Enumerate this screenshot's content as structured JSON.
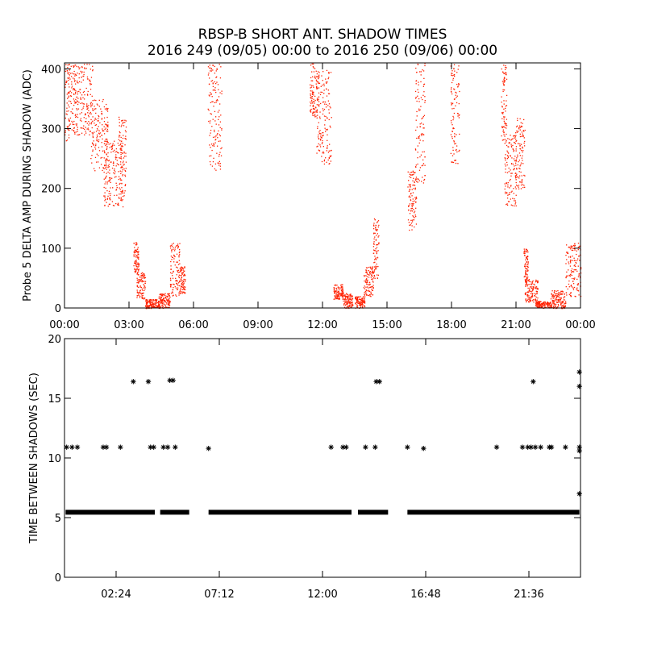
{
  "title_line1": "RBSP-B SHORT ANT. SHADOW TIMES",
  "title_line2": "2016 249 (09/05) 00:00 to 2016 250 (09/06) 00:00",
  "point_color": "#ff2000",
  "marker_color": "#000000",
  "chart_data": [
    {
      "type": "scatter",
      "ylabel": "Probe 5 DELTA AMP DURING SHADOW (ADC)",
      "xlabel": "",
      "x_unit": "hours",
      "xlim": [
        0,
        24
      ],
      "ylim": [
        0,
        410
      ],
      "x_ticks": [
        0,
        3,
        6,
        9,
        12,
        15,
        18,
        21,
        24
      ],
      "x_tick_labels": [
        "00:00",
        "03:00",
        "06:00",
        "09:00",
        "12:00",
        "15:00",
        "18:00",
        "21:00",
        "00:00"
      ],
      "y_ticks": [
        0,
        100,
        200,
        300,
        400
      ],
      "y_tick_labels": [
        "0",
        "100",
        "200",
        "300",
        "400"
      ],
      "series": [
        {
          "bands": [
            {
              "x": [
                0.0,
                0.5
              ],
              "y": [
                280,
                410
              ]
            },
            {
              "x": [
                0.4,
                1.3
              ],
              "y": [
                290,
                410
              ]
            },
            {
              "x": [
                1.2,
                2.0
              ],
              "y": [
                230,
                350
              ]
            },
            {
              "x": [
                1.8,
                2.7
              ],
              "y": [
                170,
                280
              ]
            },
            {
              "x": [
                2.5,
                2.85
              ],
              "y": [
                180,
                320
              ]
            },
            {
              "x": [
                3.2,
                3.45
              ],
              "y": [
                60,
                110
              ]
            },
            {
              "x": [
                3.35,
                3.75
              ],
              "y": [
                15,
                60
              ]
            },
            {
              "x": [
                3.75,
                4.4
              ],
              "y": [
                0,
                15
              ]
            },
            {
              "x": [
                4.35,
                4.9
              ],
              "y": [
                0,
                25
              ]
            },
            {
              "x": [
                4.9,
                5.35
              ],
              "y": [
                20,
                110
              ]
            },
            {
              "x": [
                5.35,
                5.6
              ],
              "y": [
                25,
                70
              ]
            },
            {
              "x": [
                6.65,
                7.3
              ],
              "y": [
                230,
                410
              ]
            },
            {
              "x": [
                11.4,
                11.85
              ],
              "y": [
                320,
                410
              ]
            },
            {
              "x": [
                11.7,
                12.4
              ],
              "y": [
                240,
                400
              ]
            },
            {
              "x": [
                12.5,
                12.95
              ],
              "y": [
                15,
                40
              ]
            },
            {
              "x": [
                12.95,
                13.4
              ],
              "y": [
                0,
                25
              ]
            },
            {
              "x": [
                13.5,
                13.95
              ],
              "y": [
                0,
                20
              ]
            },
            {
              "x": [
                13.9,
                14.35
              ],
              "y": [
                20,
                70
              ]
            },
            {
              "x": [
                14.35,
                14.6
              ],
              "y": [
                50,
                150
              ]
            },
            {
              "x": [
                15.95,
                16.35
              ],
              "y": [
                130,
                230
              ]
            },
            {
              "x": [
                16.3,
                16.75
              ],
              "y": [
                210,
                410
              ]
            },
            {
              "x": [
                17.95,
                18.35
              ],
              "y": [
                240,
                410
              ]
            },
            {
              "x": [
                20.3,
                20.55
              ],
              "y": [
                280,
                410
              ]
            },
            {
              "x": [
                20.45,
                21.0
              ],
              "y": [
                170,
                290
              ]
            },
            {
              "x": [
                20.95,
                21.4
              ],
              "y": [
                200,
                320
              ]
            },
            {
              "x": [
                21.35,
                21.55
              ],
              "y": [
                40,
                100
              ]
            },
            {
              "x": [
                21.4,
                22.0
              ],
              "y": [
                10,
                50
              ]
            },
            {
              "x": [
                21.9,
                22.6
              ],
              "y": [
                0,
                12
              ]
            },
            {
              "x": [
                22.6,
                23.3
              ],
              "y": [
                0,
                30
              ]
            },
            {
              "x": [
                23.3,
                24.0
              ],
              "y": [
                20,
                110
              ]
            }
          ]
        }
      ]
    },
    {
      "type": "scatter",
      "ylabel": "TIME BETWEEN SHADOWS (SEC)",
      "xlabel": "",
      "x_unit": "hours",
      "xlim": [
        0,
        24
      ],
      "ylim": [
        0,
        20
      ],
      "x_ticks": [
        2.4,
        7.2,
        12.0,
        16.8,
        21.6
      ],
      "x_tick_labels": [
        "02:24",
        "07:12",
        "12:00",
        "16:48",
        "21:36"
      ],
      "y_ticks": [
        0,
        5,
        10,
        15,
        20
      ],
      "y_tick_labels": [
        "0",
        "5",
        "10",
        "15",
        "20"
      ],
      "series": [
        {
          "segments_y": 5.45,
          "segments": [
            [
              0.05,
              4.2
            ],
            [
              4.45,
              5.8
            ],
            [
              6.7,
              13.35
            ],
            [
              13.65,
              15.05
            ],
            [
              15.95,
              23.95
            ]
          ],
          "points": [
            [
              0.1,
              10.9
            ],
            [
              0.35,
              10.9
            ],
            [
              0.6,
              10.9
            ],
            [
              1.8,
              10.9
            ],
            [
              1.95,
              10.9
            ],
            [
              2.6,
              10.9
            ],
            [
              3.2,
              16.4
            ],
            [
              3.9,
              16.4
            ],
            [
              4.0,
              10.9
            ],
            [
              4.15,
              10.9
            ],
            [
              4.6,
              10.9
            ],
            [
              4.8,
              10.9
            ],
            [
              4.9,
              16.5
            ],
            [
              5.05,
              16.5
            ],
            [
              5.15,
              10.9
            ],
            [
              6.7,
              10.8
            ],
            [
              12.4,
              10.9
            ],
            [
              12.95,
              10.9
            ],
            [
              13.1,
              10.9
            ],
            [
              14.0,
              10.9
            ],
            [
              14.45,
              10.9
            ],
            [
              14.5,
              16.4
            ],
            [
              14.65,
              16.4
            ],
            [
              15.95,
              10.9
            ],
            [
              16.7,
              10.8
            ],
            [
              20.1,
              10.9
            ],
            [
              21.3,
              10.9
            ],
            [
              21.55,
              10.9
            ],
            [
              21.7,
              10.9
            ],
            [
              21.8,
              16.4
            ],
            [
              21.9,
              10.9
            ],
            [
              22.15,
              10.9
            ],
            [
              22.55,
              10.9
            ],
            [
              22.65,
              10.9
            ],
            [
              23.3,
              10.9
            ],
            [
              23.95,
              17.2
            ],
            [
              23.95,
              16.0
            ],
            [
              23.95,
              10.9
            ],
            [
              23.95,
              10.6
            ],
            [
              23.95,
              7.0
            ]
          ]
        }
      ]
    }
  ]
}
